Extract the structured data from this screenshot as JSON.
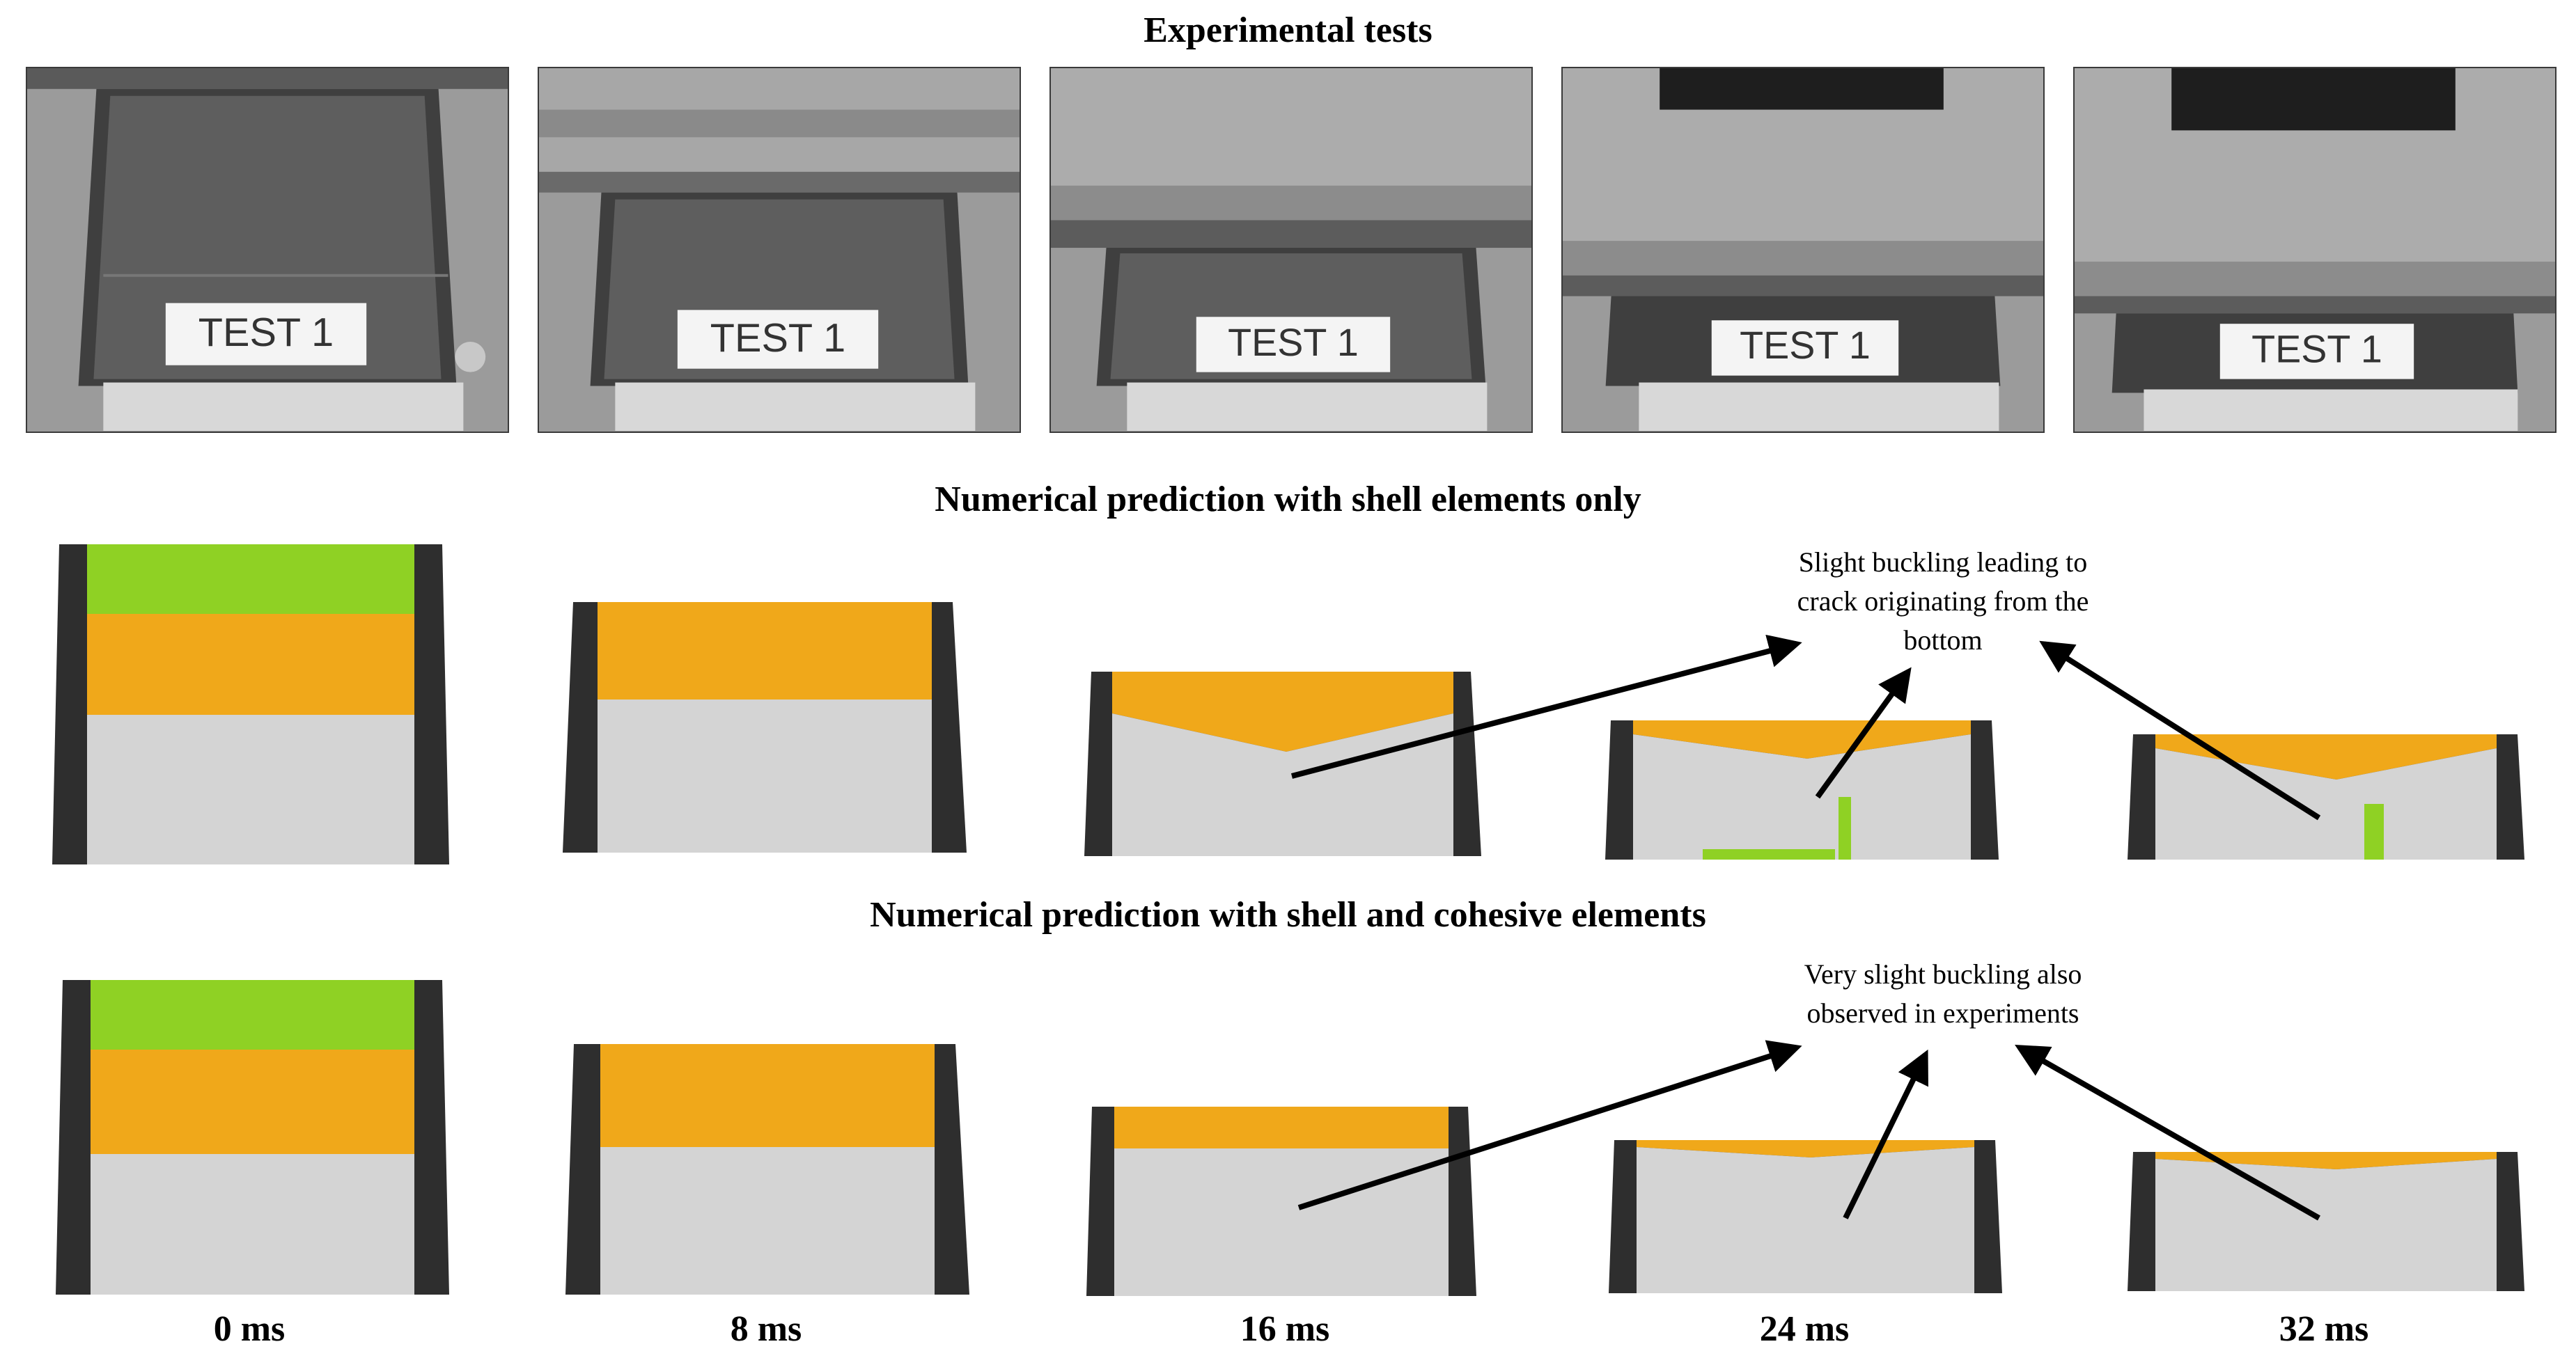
{
  "titles": {
    "experimental": "Experimental  tests",
    "shell_only": "Numerical prediction with shell elements only",
    "shell_cohesive": "Numerical prediction with shell and cohesive elements"
  },
  "photo_label": "TEST 1",
  "annotations": {
    "shell_only": [
      "Slight buckling leading to",
      "crack originating from the",
      "bottom"
    ],
    "shell_cohesive": [
      "Very slight buckling also",
      "observed  in experiments"
    ]
  },
  "time_labels": [
    "0 ms",
    "8 ms",
    "16 ms",
    "24 ms",
    "32 ms"
  ],
  "colors": {
    "green": "#8fd124",
    "orange": "#f0a81a",
    "grey_mesh": "#d4d4d4",
    "dark_edge": "#2e2e2e",
    "plate": "#a9a9a9"
  }
}
